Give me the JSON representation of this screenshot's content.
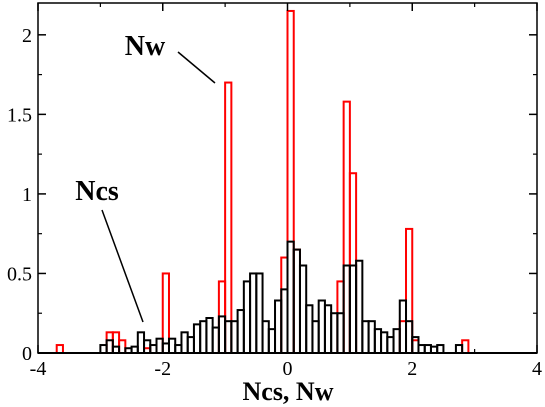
{
  "chart_data": {
    "type": "histogram",
    "title": "",
    "xlabel": "Ncs, Nw",
    "ylabel": "",
    "xlim": [
      -4,
      4
    ],
    "ylim": [
      0,
      2.2
    ],
    "grid": false,
    "bin_width": 0.1,
    "x_ticks": [
      -4,
      -2,
      0,
      2,
      4
    ],
    "x_tick_labels": [
      "-4",
      "-2",
      "0",
      "2",
      "4"
    ],
    "y_ticks": [
      0,
      0.5,
      1,
      1.5,
      2
    ],
    "y_tick_labels": [
      "0",
      "0.5",
      "1",
      "1.5",
      "2"
    ],
    "series": [
      {
        "color": "#ff0000",
        "bins": [
          {
            "x0": -3.7,
            "y": 0.05
          },
          {
            "x0": -2.9,
            "y": 0.13
          },
          {
            "x0": -2.8,
            "y": 0.13
          },
          {
            "x0": -2.7,
            "y": 0.08
          },
          {
            "x0": -2.3,
            "y": 0.03
          },
          {
            "x0": -2.0,
            "y": 0.5
          },
          {
            "x0": -1.1,
            "y": 0.45
          },
          {
            "x0": -1.0,
            "y": 1.7
          },
          {
            "x0": -0.1,
            "y": 0.6
          },
          {
            "x0": 0.0,
            "y": 2.15
          },
          {
            "x0": 0.1,
            "y": 0.65
          },
          {
            "x0": 0.8,
            "y": 0.45
          },
          {
            "x0": 0.9,
            "y": 1.58
          },
          {
            "x0": 1.0,
            "y": 1.13
          },
          {
            "x0": 1.8,
            "y": 0.2
          },
          {
            "x0": 1.9,
            "y": 0.78
          },
          {
            "x0": 2.0,
            "y": 0.08
          },
          {
            "x0": 2.8,
            "y": 0.08
          }
        ]
      },
      {
        "color": "#000000",
        "bins": [
          {
            "x0": -3.0,
            "y": 0.05
          },
          {
            "x0": -2.9,
            "y": 0.08
          },
          {
            "x0": -2.8,
            "y": 0.04
          },
          {
            "x0": -2.6,
            "y": 0.03
          },
          {
            "x0": -2.5,
            "y": 0.04
          },
          {
            "x0": -2.4,
            "y": 0.13
          },
          {
            "x0": -2.3,
            "y": 0.08
          },
          {
            "x0": -2.2,
            "y": 0.05
          },
          {
            "x0": -2.1,
            "y": 0.09
          },
          {
            "x0": -2.0,
            "y": 0.06
          },
          {
            "x0": -1.9,
            "y": 0.09
          },
          {
            "x0": -1.8,
            "y": 0.05
          },
          {
            "x0": -1.7,
            "y": 0.13
          },
          {
            "x0": -1.6,
            "y": 0.1
          },
          {
            "x0": -1.5,
            "y": 0.18
          },
          {
            "x0": -1.4,
            "y": 0.2
          },
          {
            "x0": -1.3,
            "y": 0.22
          },
          {
            "x0": -1.2,
            "y": 0.16
          },
          {
            "x0": -1.1,
            "y": 0.23
          },
          {
            "x0": -1.0,
            "y": 0.2
          },
          {
            "x0": -0.9,
            "y": 0.2
          },
          {
            "x0": -0.8,
            "y": 0.27
          },
          {
            "x0": -0.7,
            "y": 0.45
          },
          {
            "x0": -0.6,
            "y": 0.5
          },
          {
            "x0": -0.5,
            "y": 0.5
          },
          {
            "x0": -0.4,
            "y": 0.2
          },
          {
            "x0": -0.3,
            "y": 0.15
          },
          {
            "x0": -0.2,
            "y": 0.33
          },
          {
            "x0": -0.1,
            "y": 0.4
          },
          {
            "x0": 0.0,
            "y": 0.7
          },
          {
            "x0": 0.1,
            "y": 0.65
          },
          {
            "x0": 0.2,
            "y": 0.55
          },
          {
            "x0": 0.3,
            "y": 0.3
          },
          {
            "x0": 0.4,
            "y": 0.2
          },
          {
            "x0": 0.5,
            "y": 0.33
          },
          {
            "x0": 0.6,
            "y": 0.3
          },
          {
            "x0": 0.7,
            "y": 0.25
          },
          {
            "x0": 0.8,
            "y": 0.25
          },
          {
            "x0": 0.9,
            "y": 0.55
          },
          {
            "x0": 1.0,
            "y": 0.55
          },
          {
            "x0": 1.1,
            "y": 0.58
          },
          {
            "x0": 1.2,
            "y": 0.2
          },
          {
            "x0": 1.3,
            "y": 0.2
          },
          {
            "x0": 1.4,
            "y": 0.15
          },
          {
            "x0": 1.5,
            "y": 0.13
          },
          {
            "x0": 1.6,
            "y": 0.1
          },
          {
            "x0": 1.7,
            "y": 0.15
          },
          {
            "x0": 1.8,
            "y": 0.33
          },
          {
            "x0": 1.9,
            "y": 0.2
          },
          {
            "x0": 2.0,
            "y": 0.1
          },
          {
            "x0": 2.1,
            "y": 0.05
          },
          {
            "x0": 2.2,
            "y": 0.05
          },
          {
            "x0": 2.3,
            "y": 0.04
          },
          {
            "x0": 2.4,
            "y": 0.05
          },
          {
            "x0": 2.7,
            "y": 0.05
          }
        ]
      }
    ],
    "annotations": [
      {
        "text": "Nw",
        "target_x": -1.05,
        "target_y": 1.68
      },
      {
        "text": "Ncs",
        "target_x": -2.2,
        "target_y": 0.15
      }
    ]
  }
}
